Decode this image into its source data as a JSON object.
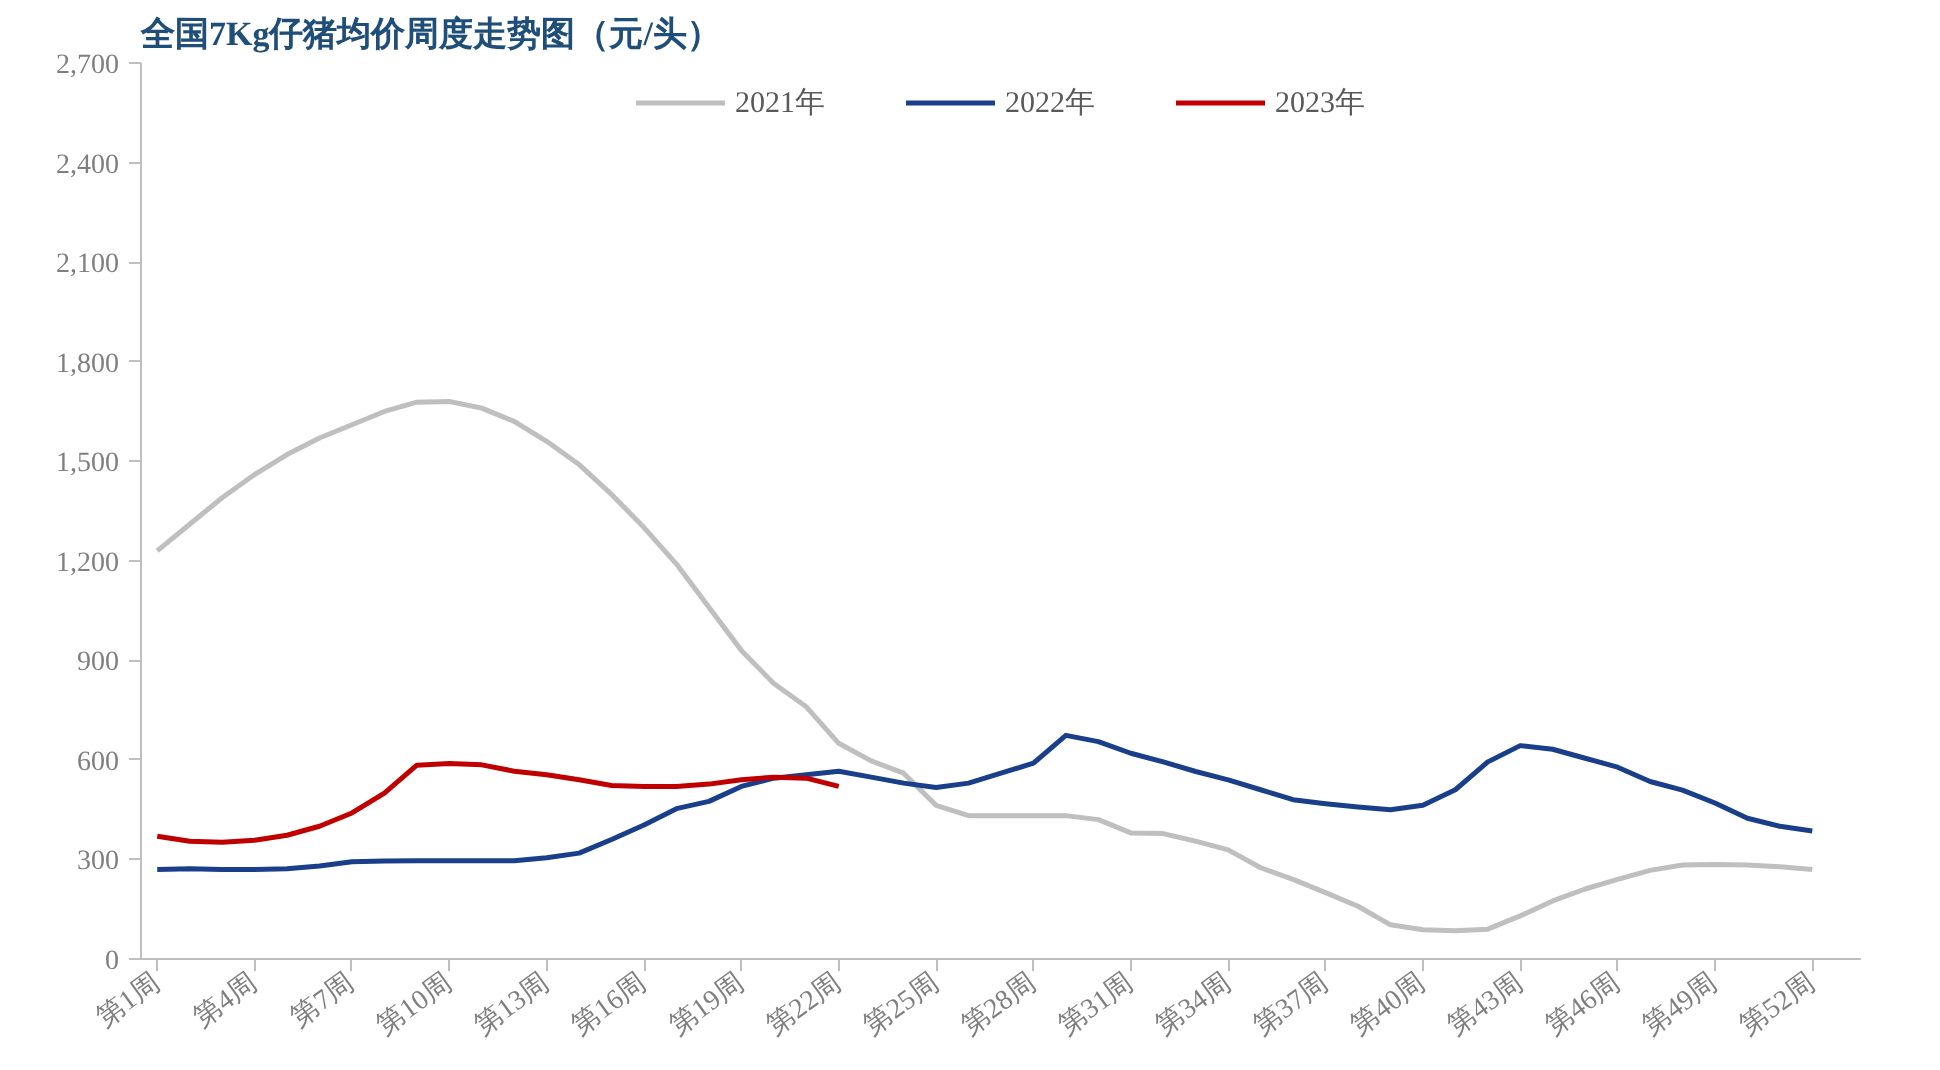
{
  "chart_data": {
    "type": "line",
    "title": "全国7Kg仔猪均价周度走势图（元/头）",
    "categories": [
      "第1周",
      null,
      null,
      "第4周",
      null,
      null,
      "第7周",
      null,
      null,
      "第10周",
      null,
      null,
      "第13周",
      null,
      null,
      "第16周",
      null,
      null,
      "第19周",
      null,
      null,
      "第22周",
      null,
      null,
      "第25周",
      null,
      null,
      "第28周",
      null,
      null,
      "第31周",
      null,
      null,
      "第34周",
      null,
      null,
      "第37周",
      null,
      null,
      "第40周",
      null,
      null,
      "第43周",
      null,
      null,
      "第46周",
      null,
      null,
      "第49周",
      null,
      null,
      "第52周"
    ],
    "series": [
      {
        "name": "2021年",
        "color": "#bfbfbf",
        "values": [
          1230,
          1310,
          1390,
          1460,
          1520,
          1570,
          1610,
          1650,
          1678,
          1680,
          1660,
          1620,
          1560,
          1490,
          1400,
          1300,
          1190,
          1060,
          930,
          830,
          760,
          650,
          597,
          560,
          463,
          432,
          432,
          432,
          432,
          420,
          380,
          378,
          355,
          329,
          275,
          240,
          200,
          159,
          103,
          88,
          85,
          90,
          130,
          175,
          211,
          240,
          267,
          283,
          285,
          283,
          278,
          270
        ]
      },
      {
        "name": "2022年",
        "color": "#1a3f8a",
        "values": [
          270,
          272,
          270,
          270,
          272,
          280,
          293,
          295,
          296,
          296,
          296,
          296,
          305,
          319,
          360,
          404,
          453,
          475,
          520,
          545,
          555,
          566,
          548,
          530,
          517,
          530,
          560,
          590,
          674,
          655,
          620,
          594,
          565,
          540,
          510,
          480,
          468,
          458,
          450,
          463,
          510,
          594,
          643,
          632,
          605,
          578,
          535,
          509,
          470,
          424,
          400,
          386
        ]
      },
      {
        "name": "2023年",
        "color": "#c00000",
        "values": [
          370,
          355,
          352,
          358,
          373,
          400,
          440,
          500,
          584,
          589,
          585,
          566,
          555,
          540,
          523,
          520,
          520,
          527,
          540,
          548,
          545,
          520,
          null,
          null,
          null,
          null,
          null,
          null,
          null,
          null,
          null,
          null,
          null,
          null,
          null,
          null,
          null,
          null,
          null,
          null,
          null,
          null,
          null,
          null,
          null,
          null,
          null,
          null,
          null,
          null,
          null,
          null
        ]
      }
    ],
    "ylim": [
      0,
      2700
    ],
    "yticks": [
      0,
      300,
      600,
      900,
      {
        "value": 1200,
        "label": "1,200"
      },
      {
        "value": 1500,
        "label": "1,500"
      },
      {
        "value": 1800,
        "label": "1,800"
      },
      {
        "value": 2100,
        "label": "2,100"
      },
      {
        "value": 2400,
        "label": "2,400"
      },
      {
        "value": 2700,
        "label": "2,700"
      }
    ],
    "legend": "top",
    "line_style": "solid"
  }
}
